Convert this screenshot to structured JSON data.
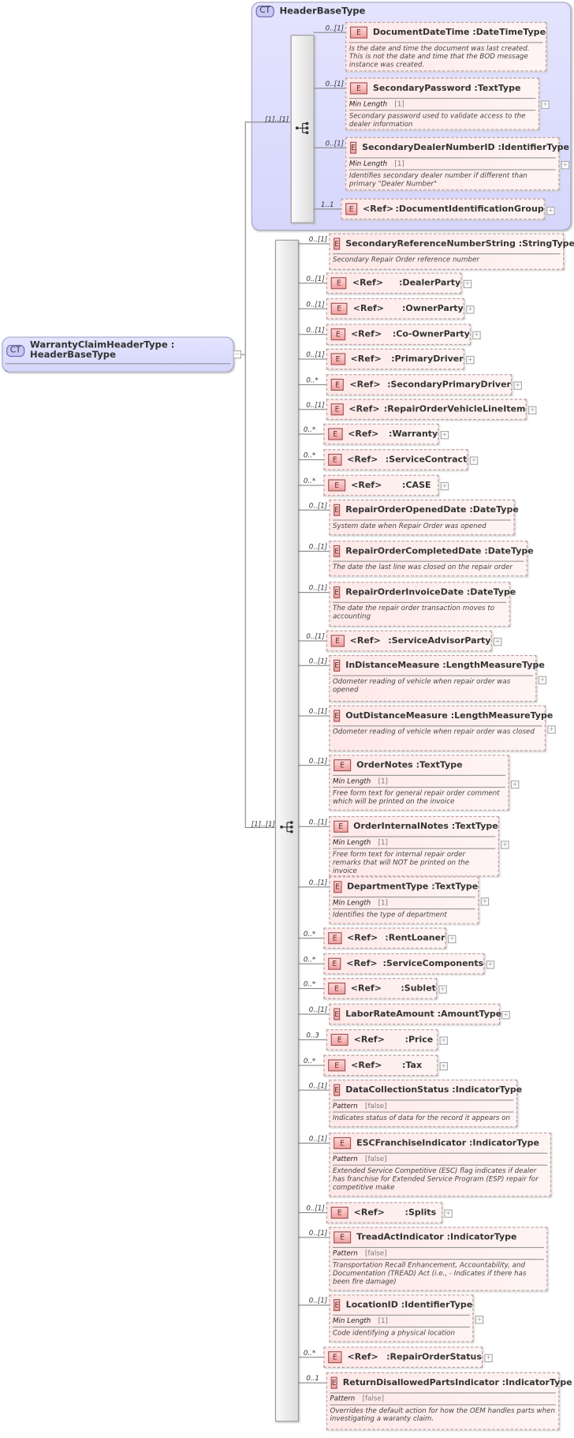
{
  "root": {
    "badge": "CT",
    "title": "WarrantyClaimHeaderType : HeaderBaseType",
    "desc": "."
  },
  "base": {
    "badge": "CT",
    "title": "HeaderBaseType",
    "sequence_cardinality": "[1]..[1]",
    "items": [
      {
        "name": "DocumentDateTime",
        "type": "DateTimeType",
        "card": "0..[1]",
        "desc": "Is the date and time the document was last created. This is not the date and time that the BOD message instance was created.",
        "expand": false
      },
      {
        "name": "SecondaryPassword",
        "type": "TextType",
        "card": "0..[1]",
        "facet": "Min Length",
        "facet_value": "[1]",
        "desc": "Secondary password used to validate access to the dealer information",
        "expand": true
      },
      {
        "name": "SecondaryDealerNumberID",
        "type": "IdentifierType",
        "card": "0..[1]",
        "facet": "Min Length",
        "facet_value": "[1]",
        "desc": "Identifies secondary dealer number if different than primary \"Dealer Number\"",
        "expand": true
      },
      {
        "ref": "<Ref>",
        "name": "DocumentIdentificationGroup",
        "card": "1..1",
        "expand": true
      }
    ]
  },
  "main": {
    "sequence_cardinality": "[1]..[1]",
    "items": [
      {
        "name": "SecondaryReferenceNumberString",
        "type": "StringType",
        "card": "0..[1]",
        "desc": "Secondary Repair Order reference number",
        "expand": false
      },
      {
        "ref": "<Ref>",
        "name": "DealerParty",
        "card": "0..[1]",
        "expand": true
      },
      {
        "ref": "<Ref>",
        "name": "OwnerParty",
        "card": "0..[1]",
        "expand": true
      },
      {
        "ref": "<Ref>",
        "name": "Co-OwnerParty",
        "card": "0..[1]",
        "expand": true
      },
      {
        "ref": "<Ref>",
        "name": "PrimaryDriver",
        "card": "0..[1]",
        "expand": true
      },
      {
        "ref": "<Ref>",
        "name": "SecondaryPrimaryDriver",
        "card": "0..*",
        "expand": true
      },
      {
        "ref": "<Ref>",
        "name": "RepairOrderVehicleLineItem",
        "card": "0..[1]",
        "expand": true
      },
      {
        "ref": "<Ref>",
        "name": "Warranty",
        "card": "0..*",
        "expand": true
      },
      {
        "ref": "<Ref>",
        "name": "ServiceContract",
        "card": "0..*",
        "expand": true
      },
      {
        "ref": "<Ref>",
        "name": "CASE",
        "card": "0..*",
        "expand": true
      },
      {
        "name": "RepairOrderOpenedDate",
        "type": "DateType",
        "card": "0..[1]",
        "desc": "System date when Repair Order was opened",
        "expand": false
      },
      {
        "name": "RepairOrderCompletedDate",
        "type": "DateType",
        "card": "0..[1]",
        "desc": "The date the last line was closed on the repair order",
        "expand": false
      },
      {
        "name": "RepairOrderInvoiceDate",
        "type": "DateType",
        "card": "0..[1]",
        "desc": "The date the repair order transaction moves to accounting",
        "expand": false
      },
      {
        "ref": "<Ref>",
        "name": "ServiceAdvisorParty",
        "card": "0..[1]",
        "expand": true
      },
      {
        "name": "InDistanceMeasure",
        "type": "LengthMeasureType",
        "card": "0..[1]",
        "desc": "Odometer reading of vehicle when repair order was opened",
        "expand": true
      },
      {
        "name": "OutDistanceMeasure",
        "type": "LengthMeasureType",
        "card": "0..[1]",
        "desc": "Odometer reading of vehicle when repair order was closed",
        "expand": true
      },
      {
        "name": "OrderNotes",
        "type": "TextType",
        "card": "0..[1]",
        "facet": "Min Length",
        "facet_value": "[1]",
        "desc": "Free form text for general repair order comment which will be printed on the invoice",
        "expand": true
      },
      {
        "name": "OrderInternalNotes",
        "type": "TextType",
        "card": "0..[1]",
        "facet": "Min Length",
        "facet_value": "[1]",
        "desc": "Free form text for internal repair order remarks that will NOT be printed on the invoice",
        "expand": true
      },
      {
        "name": "DepartmentType",
        "type": "TextType",
        "card": "0..[1]",
        "facet": "Min Length",
        "facet_value": "[1]",
        "desc": "Identifies the type of department",
        "expand": true
      },
      {
        "ref": "<Ref>",
        "name": "RentLoaner",
        "card": "0..*",
        "expand": true
      },
      {
        "ref": "<Ref>",
        "name": "ServiceComponents",
        "card": "0..*",
        "expand": true
      },
      {
        "ref": "<Ref>",
        "name": "Sublet",
        "card": "0..*",
        "expand": true
      },
      {
        "name": "LaborRateAmount",
        "type": "AmountType",
        "card": "0..[1]",
        "expand": true
      },
      {
        "ref": "<Ref>",
        "name": "Price",
        "card": "0..3",
        "expand": true
      },
      {
        "ref": "<Ref>",
        "name": "Tax",
        "card": "0..*",
        "expand": true
      },
      {
        "name": "DataCollectionStatus",
        "type": "IndicatorType",
        "card": "0..[1]",
        "facet": "Pattern",
        "facet_value": "[false]",
        "desc": "Indicates status of data for the record it appears on",
        "expand": false
      },
      {
        "name": "ESCFranchiseIndicator",
        "type": "IndicatorType",
        "card": "0..[1]",
        "facet": "Pattern",
        "facet_value": "[false]",
        "desc": "Extended Service Competitive (ESC) flag indicates if dealer has franchise for Extended Service Program (ESP) repair for competitive make",
        "expand": false
      },
      {
        "ref": "<Ref>",
        "name": "Splits",
        "card": "0..[1]",
        "expand": true
      },
      {
        "name": "TreadActIndicator",
        "type": "IndicatorType",
        "card": "0..[1]",
        "facet": "Pattern",
        "facet_value": "[false]",
        "desc": "Transportation Recall Enhancement, Accountability, and Documentation (TREAD) Act (i.e., - Indicates if there has been fire damage)",
        "expand": false
      },
      {
        "name": "LocationID",
        "type": "IdentifierType",
        "card": "0..[1]",
        "facet": "Min Length",
        "facet_value": "[1]",
        "desc": "Code identifying a physical location",
        "expand": true
      },
      {
        "ref": "<Ref>",
        "name": "RepairOrderStatus",
        "card": "0..*",
        "expand": true
      },
      {
        "name": "ReturnDisallowedPartsIndicator",
        "type": "IndicatorType",
        "card": "0..1",
        "facet": "Pattern",
        "facet_value": "[false]",
        "desc": "Overrides the default action for how the OEM handles parts when investigating a waranty claim.",
        "expand": false
      }
    ]
  }
}
